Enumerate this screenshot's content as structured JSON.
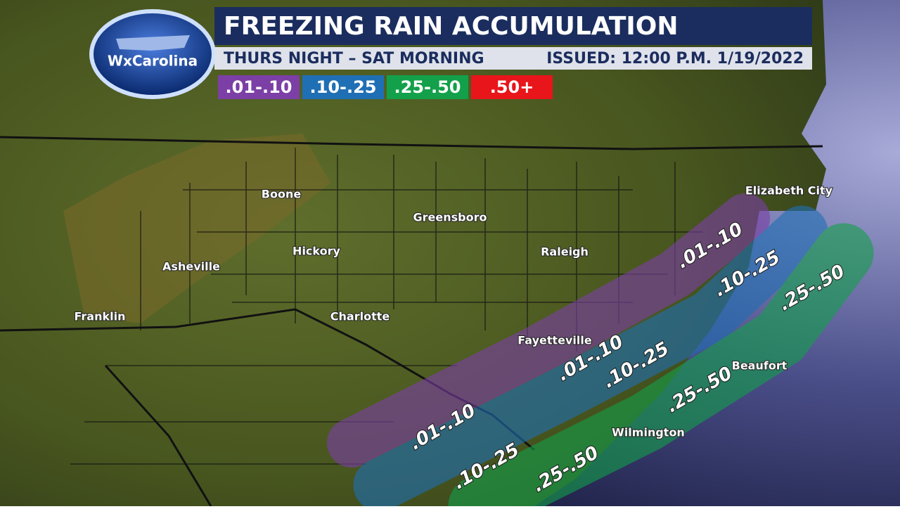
{
  "header": {
    "logo": "WxCarolina",
    "title": "FREEZING RAIN ACCUMULATION",
    "subtitle": "THURS NIGHT – SAT MORNING",
    "issued": "ISSUED: 12:00 P.M. 1/19/2022"
  },
  "legend": [
    {
      "label": ".01-.10",
      "color": "#7b3fa6"
    },
    {
      "label": ".10-.25",
      "color": "#1f6fb5"
    },
    {
      "label": ".25-.50",
      "color": "#13a04a"
    },
    {
      "label": ".50+",
      "color": "#e8151b"
    }
  ],
  "cities": [
    "Boone",
    "Greensboro",
    "Hickory",
    "Asheville",
    "Raleigh",
    "Elizabeth City",
    "Franklin",
    "Charlotte",
    "Fayetteville",
    "Beaufort",
    "Wilmington"
  ]
}
